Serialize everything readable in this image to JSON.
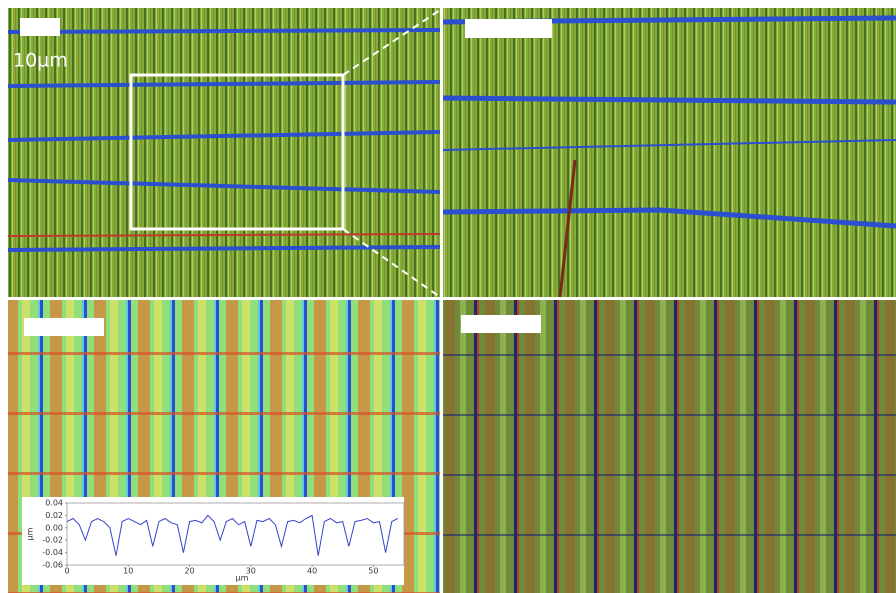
{
  "scale_label": "10µm",
  "chart_data": {
    "type": "line",
    "xlabel": "µm",
    "ylabel": "µm",
    "x": [
      0,
      1,
      2,
      3,
      4,
      5,
      6,
      7,
      8,
      9,
      10,
      11,
      12,
      13,
      14,
      15,
      16,
      17,
      18,
      19,
      20,
      21,
      22,
      23,
      24,
      25,
      26,
      27,
      28,
      29,
      30,
      31,
      32,
      33,
      34,
      35,
      36,
      37,
      38,
      39,
      40,
      41,
      42,
      43,
      44,
      45,
      46,
      47,
      48,
      49,
      50,
      51,
      52,
      53,
      54
    ],
    "series": [
      {
        "color": "#3344cc",
        "values": [
          0.01,
          0.015,
          0.005,
          -0.02,
          0.01,
          0.015,
          0.01,
          0.0,
          -0.045,
          0.01,
          0.015,
          0.01,
          0.005,
          0.012,
          -0.03,
          0.01,
          0.015,
          0.008,
          0.005,
          -0.04,
          0.01,
          0.012,
          0.008,
          0.02,
          0.01,
          -0.02,
          0.01,
          0.015,
          0.005,
          0.01,
          -0.03,
          0.012,
          0.01,
          0.015,
          0.005,
          -0.03,
          0.01,
          0.012,
          0.008,
          0.015,
          0.02,
          -0.045,
          0.01,
          0.015,
          0.008,
          0.01,
          -0.03,
          0.01,
          0.012,
          0.015,
          0.008,
          0.01,
          -0.04,
          0.01,
          0.015
        ]
      }
    ],
    "xlim": [
      0,
      55
    ],
    "xticks": [
      0,
      10,
      20,
      30,
      40,
      50
    ],
    "ylim": [
      -0.06,
      0.04
    ],
    "yticks": [
      -0.06,
      -0.04,
      -0.02,
      {
        "value": 0,
        "label": "0.00"
      },
      0.02,
      0.04
    ],
    "grid": false
  }
}
